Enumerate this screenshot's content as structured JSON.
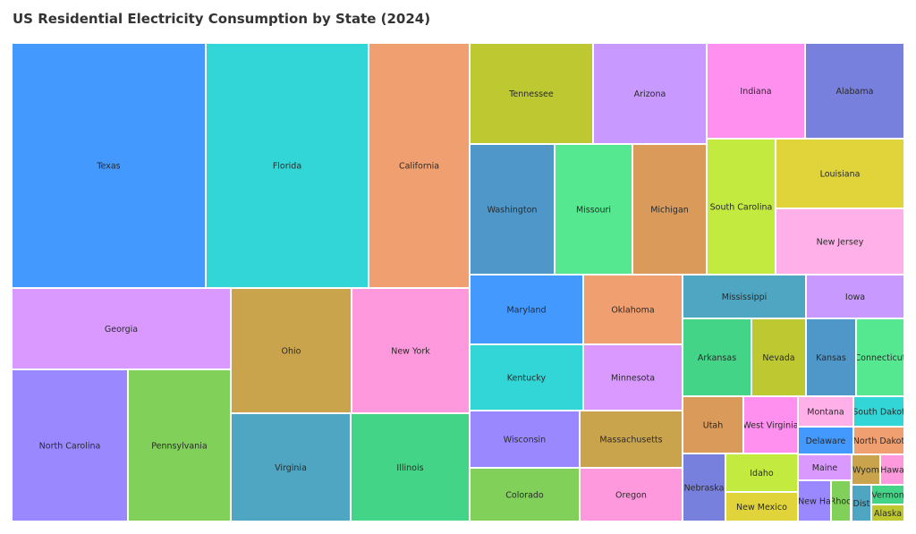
{
  "chart_data": {
    "type": "treemap",
    "title": "US Residential Electricity Consumption by State (2024)",
    "series": [
      {
        "name": "Texas",
        "color": "#4499ff"
      },
      {
        "name": "Florida",
        "color": "#33d6d6"
      },
      {
        "name": "California",
        "color": "#f0a070"
      },
      {
        "name": "Georgia",
        "color": "#da99ff"
      },
      {
        "name": "Ohio",
        "color": "#c9a44c"
      },
      {
        "name": "New York",
        "color": "#ff99dd"
      },
      {
        "name": "North Carolina",
        "color": "#9988ff"
      },
      {
        "name": "Pennsylvania",
        "color": "#80d05a"
      },
      {
        "name": "Virginia",
        "color": "#4fa6c2"
      },
      {
        "name": "Illinois",
        "color": "#44d488"
      },
      {
        "name": "Tennessee",
        "color": "#bec932"
      },
      {
        "name": "Arizona",
        "color": "#c899ff"
      },
      {
        "name": "Washington",
        "color": "#4f96c9"
      },
      {
        "name": "Missouri",
        "color": "#55e890"
      },
      {
        "name": "Michigan",
        "color": "#d99a5a"
      },
      {
        "name": "Indiana",
        "color": "#ff90f0"
      },
      {
        "name": "Alabama",
        "color": "#7780dd"
      },
      {
        "name": "South Carolina",
        "color": "#c2ea3f"
      },
      {
        "name": "Louisiana",
        "color": "#e0d43a"
      },
      {
        "name": "New Jersey",
        "color": "#ffb0e8"
      },
      {
        "name": "Maryland",
        "color": "#4499ff"
      },
      {
        "name": "Oklahoma",
        "color": "#f0a070"
      },
      {
        "name": "Kentucky",
        "color": "#33d6d6"
      },
      {
        "name": "Minnesota",
        "color": "#da99ff"
      },
      {
        "name": "Wisconsin",
        "color": "#9988ff"
      },
      {
        "name": "Massachusetts",
        "color": "#c9a44c"
      },
      {
        "name": "Colorado",
        "color": "#80d05a"
      },
      {
        "name": "Oregon",
        "color": "#ff99dd"
      },
      {
        "name": "Mississippi",
        "color": "#4fa6c2"
      },
      {
        "name": "Iowa",
        "color": "#c899ff"
      },
      {
        "name": "Arkansas",
        "color": "#44d488"
      },
      {
        "name": "Nevada",
        "color": "#bec932"
      },
      {
        "name": "Kansas",
        "color": "#4f96c9"
      },
      {
        "name": "Connecticut",
        "color": "#55e890"
      },
      {
        "name": "Utah",
        "color": "#d99a5a"
      },
      {
        "name": "West Virginia",
        "color": "#ff90f0"
      },
      {
        "name": "Nebraska",
        "color": "#7780dd"
      },
      {
        "name": "Idaho",
        "color": "#c2ea3f"
      },
      {
        "name": "New Mexico",
        "color": "#e0d43a"
      },
      {
        "name": "Montana",
        "color": "#ffb0e8"
      },
      {
        "name": "South Dakot",
        "color": "#33d6d6"
      },
      {
        "name": "Delaware",
        "color": "#4499ff"
      },
      {
        "name": "North Dakot",
        "color": "#f0a070"
      },
      {
        "name": "Maine",
        "color": "#da99ff"
      },
      {
        "name": "Wyom",
        "color": "#c9a44c"
      },
      {
        "name": "Hawa",
        "color": "#ff99dd"
      },
      {
        "name": "New Ha",
        "color": "#9988ff"
      },
      {
        "name": "Rhod",
        "color": "#80d05a"
      },
      {
        "name": "Dist",
        "color": "#4fa6c2"
      },
      {
        "name": "Vermon",
        "color": "#44d488"
      },
      {
        "name": "Alaska",
        "color": "#bec932"
      }
    ]
  }
}
